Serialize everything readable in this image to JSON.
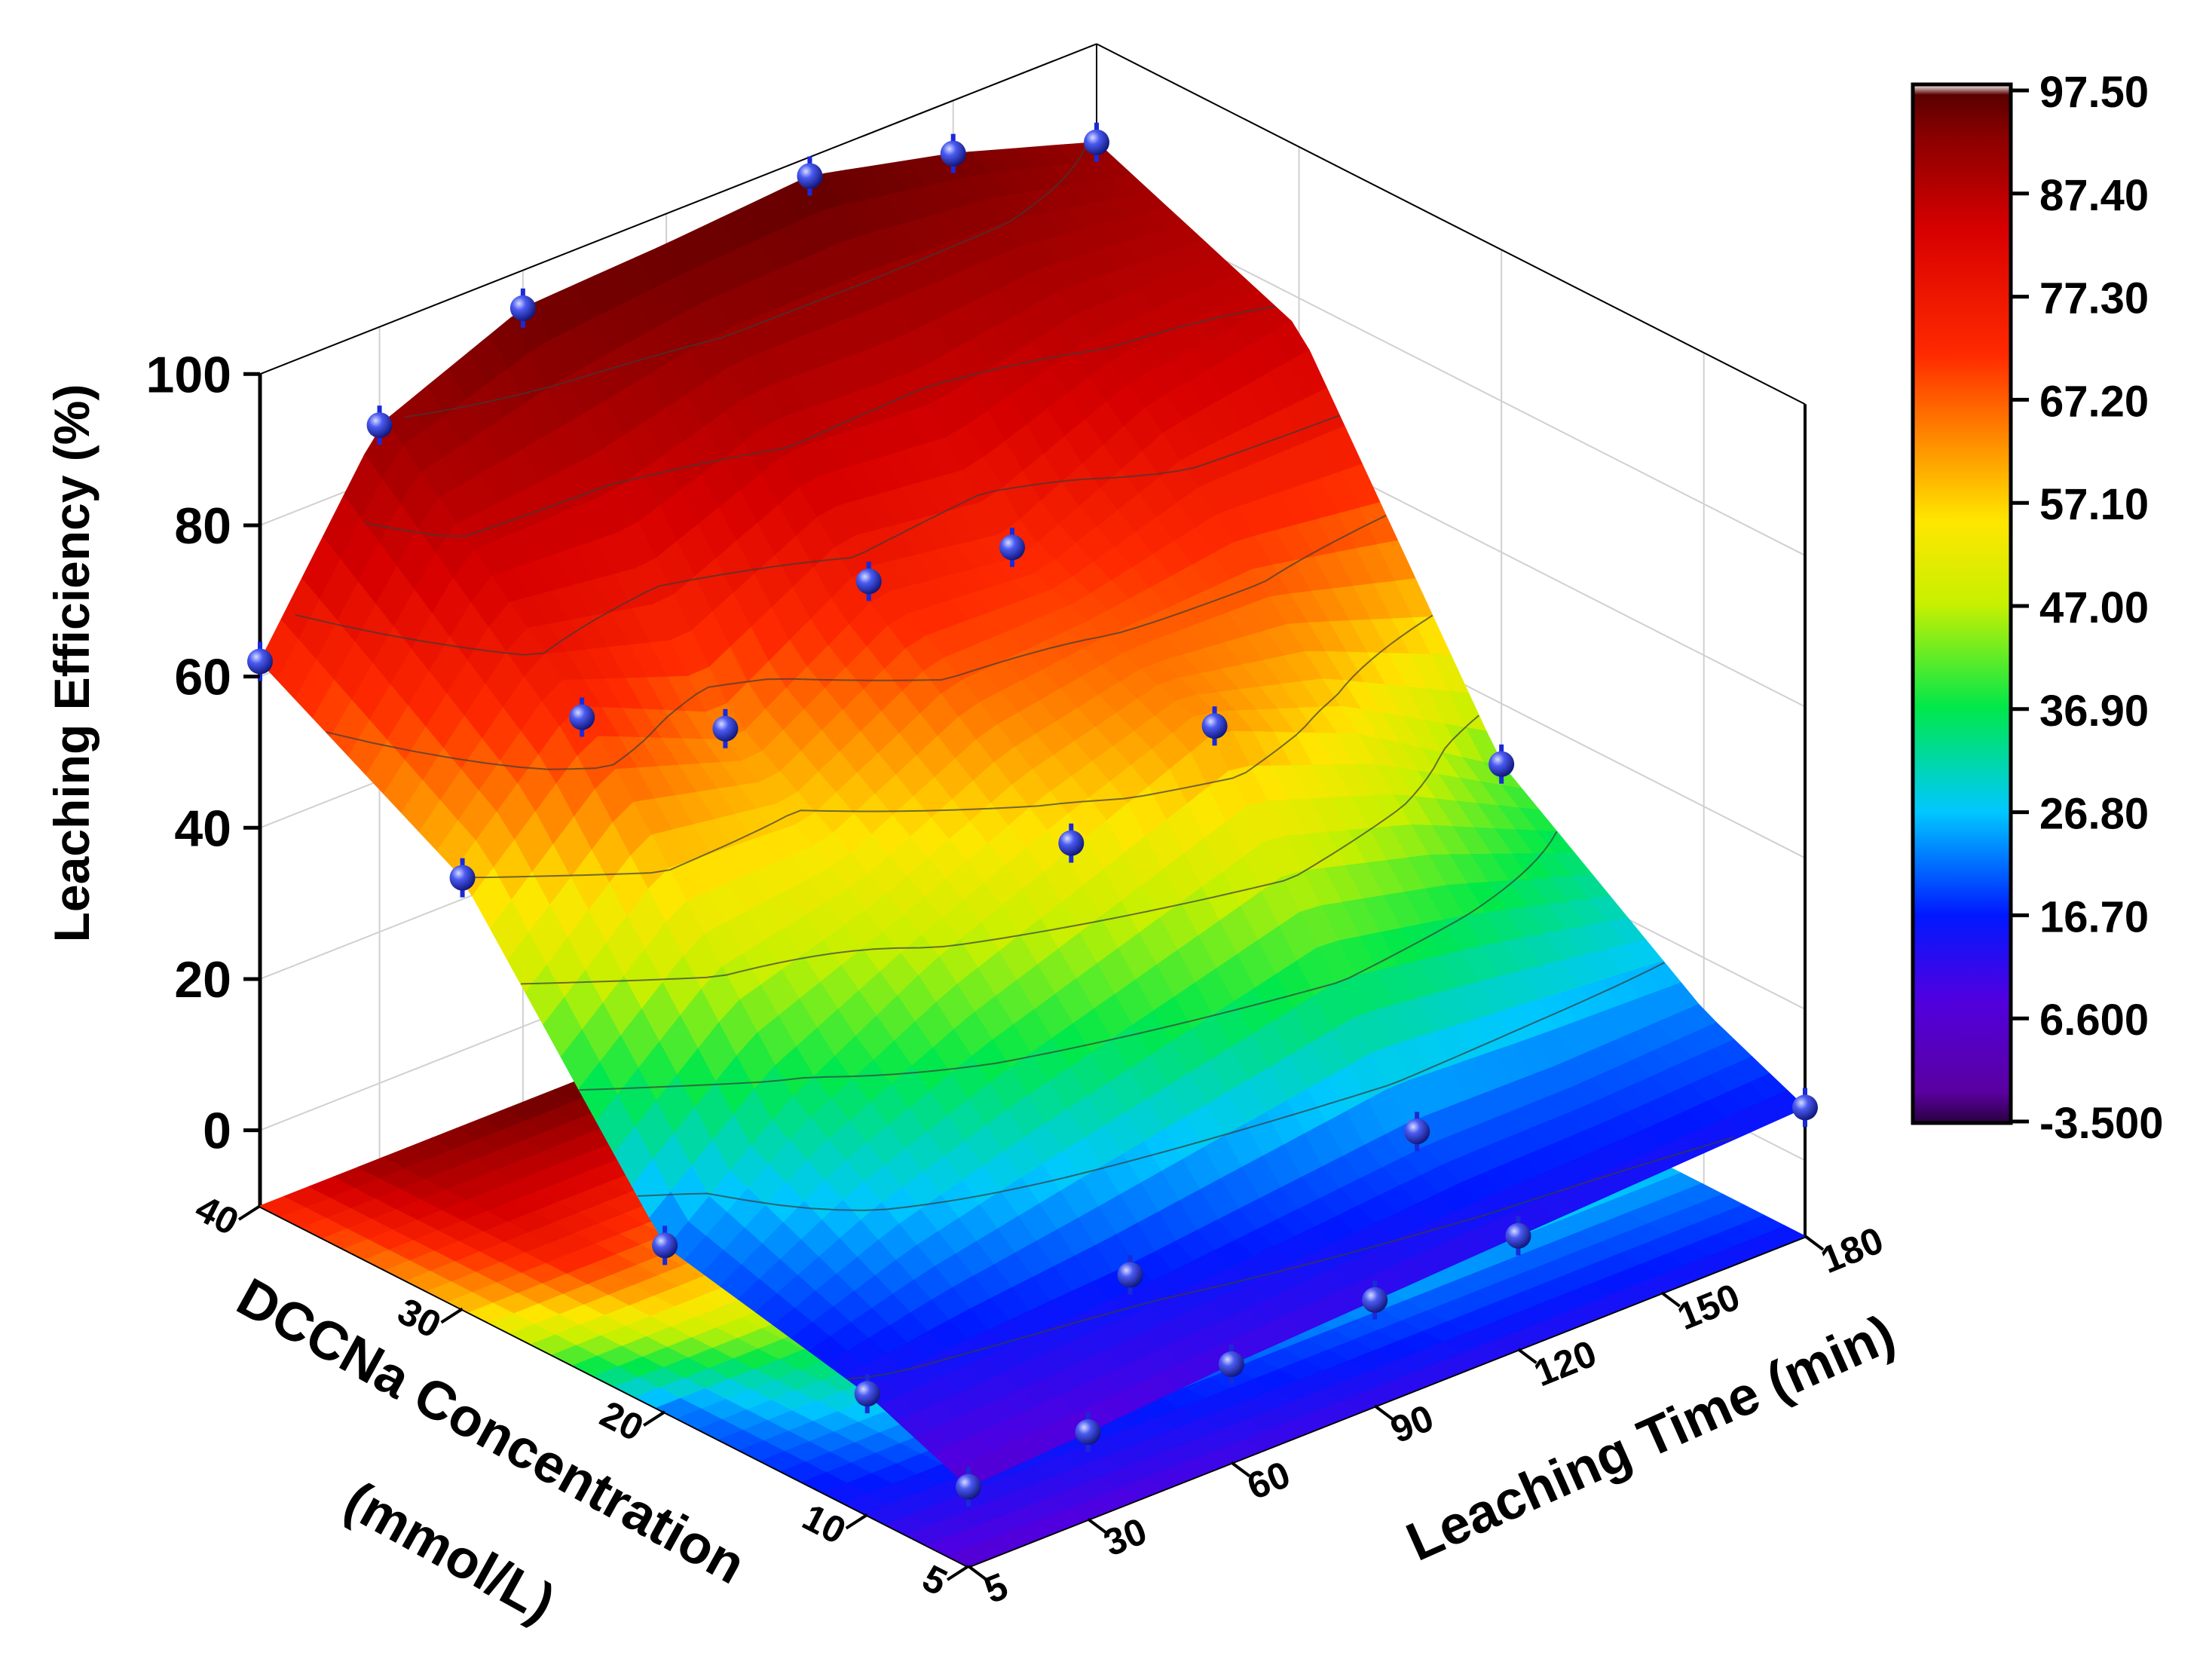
{
  "chart_data": {
    "type": "surface3d",
    "title": "",
    "x_axis": {
      "label_line1": "DCCNa Concentration",
      "label_line2": "(mmol/L)",
      "ticks": [
        "5",
        "10",
        "20",
        "30",
        "40"
      ],
      "values": [
        5,
        10,
        20,
        30,
        40
      ]
    },
    "y_axis": {
      "label": "Leaching Time (min)",
      "ticks": [
        "5",
        "30",
        "60",
        "90",
        "120",
        "150",
        "180"
      ],
      "values": [
        5,
        30,
        60,
        90,
        120,
        150,
        180
      ]
    },
    "z_axis": {
      "label": "Leaching Efficiency (%)",
      "ticks": [
        "0",
        "20",
        "40",
        "60",
        "80",
        "100"
      ],
      "values": [
        0,
        20,
        40,
        60,
        80,
        100
      ],
      "range": [
        -10,
        100
      ]
    },
    "colorbar": {
      "labels": [
        "97.50",
        "87.40",
        "77.30",
        "67.20",
        "57.10",
        "47.00",
        "36.90",
        "26.80",
        "16.70",
        "6.600",
        "-3.500"
      ],
      "min": -3.5,
      "max": 97.5
    },
    "points": [
      {
        "c": 5,
        "t": 5,
        "e": 0.5
      },
      {
        "c": 5,
        "t": 30,
        "e": 1.5
      },
      {
        "c": 5,
        "t": 60,
        "e": 3
      },
      {
        "c": 5,
        "t": 90,
        "e": 4
      },
      {
        "c": 5,
        "t": 120,
        "e": 5
      },
      {
        "c": 5,
        "t": 180,
        "e": 7
      },
      {
        "c": 10,
        "t": 5,
        "e": 6
      },
      {
        "c": 10,
        "t": 60,
        "e": 8
      },
      {
        "c": 10,
        "t": 120,
        "e": 12
      },
      {
        "c": 20,
        "t": 5,
        "e": 12
      },
      {
        "c": 20,
        "t": 90,
        "e": 44
      },
      {
        "c": 20,
        "t": 120,
        "e": 52
      },
      {
        "c": 20,
        "t": 180,
        "e": 32
      },
      {
        "c": 30,
        "t": 5,
        "e": 47
      },
      {
        "c": 30,
        "t": 30,
        "e": 62
      },
      {
        "c": 30,
        "t": 60,
        "e": 53
      },
      {
        "c": 30,
        "t": 90,
        "e": 65
      },
      {
        "c": 30,
        "t": 120,
        "e": 62
      },
      {
        "c": 40,
        "t": 5,
        "e": 62
      },
      {
        "c": 40,
        "t": 30,
        "e": 87
      },
      {
        "c": 40,
        "t": 60,
        "e": 95
      },
      {
        "c": 40,
        "t": 120,
        "e": 97.5
      },
      {
        "c": 40,
        "t": 150,
        "e": 93
      },
      {
        "c": 40,
        "t": 180,
        "e": 87
      }
    ],
    "surface_grid": {
      "c": [
        5,
        10,
        20,
        30,
        40
      ],
      "t": [
        5,
        30,
        60,
        90,
        120,
        150,
        180
      ],
      "e": [
        [
          0.5,
          1.5,
          3,
          4,
          5,
          6,
          7
        ],
        [
          6,
          7,
          8,
          10,
          12,
          12,
          13
        ],
        [
          12,
          25,
          36,
          44,
          52,
          44,
          32
        ],
        [
          47,
          62,
          53,
          65,
          62,
          72,
          76
        ],
        [
          62,
          87,
          95,
          96,
          97.5,
          93,
          87
        ]
      ]
    },
    "contour_levels": [
      -3.5,
      6.6,
      16.7,
      26.8,
      36.9,
      47,
      57.1,
      67.2,
      77.3,
      87.4,
      97.5
    ]
  }
}
